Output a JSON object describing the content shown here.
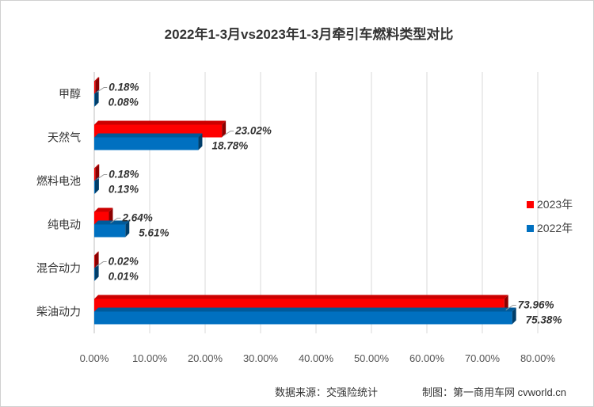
{
  "chart_data": {
    "type": "bar",
    "orientation": "horizontal",
    "title": "2022年1-3月vs2023年1-3月牵引车燃料类型对比",
    "categories": [
      "甲醇",
      "天然气",
      "燃料电池",
      "纯电动",
      "混合动力",
      "柴油动力"
    ],
    "series": [
      {
        "name": "2023年",
        "color": "#ff0000",
        "values": [
          0.18,
          23.02,
          0.18,
          2.64,
          0.02,
          73.96
        ],
        "labels": [
          "0.18%",
          "23.02%",
          "0.18%",
          "2.64%",
          "0.02%",
          "73.96%"
        ]
      },
      {
        "name": "2022年",
        "color": "#0070c0",
        "values": [
          0.08,
          18.78,
          0.13,
          5.61,
          0.01,
          75.38
        ],
        "labels": [
          "0.08%",
          "18.78%",
          "0.13%",
          "5.61%",
          "0.01%",
          "75.38%"
        ]
      }
    ],
    "xlim": [
      0,
      80
    ],
    "xticks": [
      0,
      10,
      20,
      30,
      40,
      50,
      60,
      70,
      80
    ],
    "xtick_labels": [
      "0.00%",
      "10.00%",
      "20.00%",
      "30.00%",
      "40.00%",
      "50.00%",
      "60.00%",
      "70.00%",
      "80.00%"
    ],
    "grid": true,
    "legend_position": "right"
  },
  "footer": {
    "source": "数据来源：交强险统计",
    "maker": "制图：第一商用车网 cvworld.cn"
  }
}
